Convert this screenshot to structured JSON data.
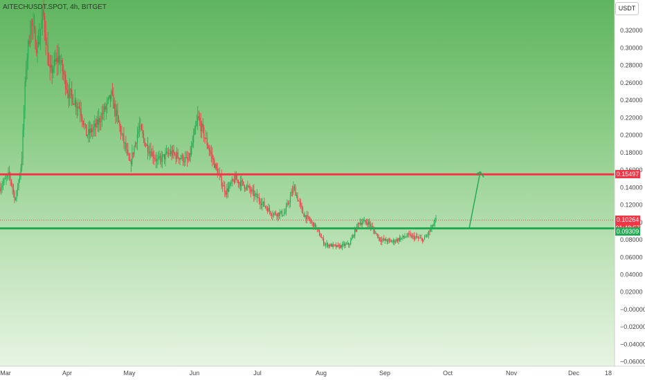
{
  "header": {
    "title": "AITECHUSDT.SPOT, 4h, BITGET",
    "currency_button": "USDT"
  },
  "chart_data": {
    "type": "candlestick",
    "symbol": "AITECHUSDT.SPOT",
    "interval": "4h",
    "exchange": "BITGET",
    "y_tick_labels": [
      "0.32000",
      "0.30000",
      "0.28000",
      "0.26000",
      "0.24000",
      "0.22000",
      "0.20000",
      "0.18000",
      "0.16000",
      "0.14000",
      "0.12000",
      "0.10000",
      "0.08000",
      "0.06000",
      "0.04000",
      "0.02000",
      "−0.00000",
      "−0.02000",
      "−0.04000",
      "−0.06000"
    ],
    "y_tick_values": [
      0.32,
      0.3,
      0.28,
      0.26,
      0.24,
      0.22,
      0.2,
      0.18,
      0.16,
      0.14,
      0.12,
      0.1,
      0.08,
      0.06,
      0.04,
      0.02,
      0.0,
      -0.02,
      -0.04,
      -0.06
    ],
    "ylim": [
      -0.065,
      0.355
    ],
    "x_tick_labels": [
      "Mar",
      "Apr",
      "May",
      "Jun",
      "Jul",
      "Aug",
      "Sep",
      "Oct",
      "Nov",
      "Dec",
      "18"
    ],
    "price_path": [
      {
        "t": 0.0,
        "p": 0.14
      },
      {
        "t": 1.5,
        "p": 0.155
      },
      {
        "t": 2.5,
        "p": 0.125
      },
      {
        "t": 3.5,
        "p": 0.17
      },
      {
        "t": 4.2,
        "p": 0.28
      },
      {
        "t": 5.0,
        "p": 0.33
      },
      {
        "t": 6.0,
        "p": 0.3
      },
      {
        "t": 7.0,
        "p": 0.34
      },
      {
        "t": 8.0,
        "p": 0.27
      },
      {
        "t": 9.5,
        "p": 0.29
      },
      {
        "t": 11.0,
        "p": 0.25
      },
      {
        "t": 13.0,
        "p": 0.23
      },
      {
        "t": 14.0,
        "p": 0.2
      },
      {
        "t": 15.5,
        "p": 0.21
      },
      {
        "t": 17.0,
        "p": 0.23
      },
      {
        "t": 18.0,
        "p": 0.245
      },
      {
        "t": 19.5,
        "p": 0.205
      },
      {
        "t": 20.5,
        "p": 0.18
      },
      {
        "t": 21.0,
        "p": 0.165
      },
      {
        "t": 22.5,
        "p": 0.21
      },
      {
        "t": 23.5,
        "p": 0.19
      },
      {
        "t": 25.5,
        "p": 0.17
      },
      {
        "t": 27.5,
        "p": 0.18
      },
      {
        "t": 29.0,
        "p": 0.175
      },
      {
        "t": 30.5,
        "p": 0.17
      },
      {
        "t": 32.0,
        "p": 0.22
      },
      {
        "t": 33.5,
        "p": 0.19
      },
      {
        "t": 35.0,
        "p": 0.16
      },
      {
        "t": 36.5,
        "p": 0.135
      },
      {
        "t": 38.0,
        "p": 0.15
      },
      {
        "t": 40.0,
        "p": 0.14
      },
      {
        "t": 42.0,
        "p": 0.125
      },
      {
        "t": 44.0,
        "p": 0.11
      },
      {
        "t": 46.0,
        "p": 0.11
      },
      {
        "t": 47.5,
        "p": 0.14
      },
      {
        "t": 49.0,
        "p": 0.11
      },
      {
        "t": 51.0,
        "p": 0.095
      },
      {
        "t": 52.5,
        "p": 0.075
      },
      {
        "t": 54.5,
        "p": 0.072
      },
      {
        "t": 56.5,
        "p": 0.075
      },
      {
        "t": 58.0,
        "p": 0.1
      },
      {
        "t": 59.5,
        "p": 0.1
      },
      {
        "t": 61.5,
        "p": 0.08
      },
      {
        "t": 63.5,
        "p": 0.078
      },
      {
        "t": 66.0,
        "p": 0.085
      },
      {
        "t": 68.5,
        "p": 0.08
      },
      {
        "t": 69.5,
        "p": 0.09
      },
      {
        "t": 70.5,
        "p": 0.103
      }
    ],
    "horizontal_lines": [
      {
        "price": 0.15497,
        "color": "#f23645"
      },
      {
        "price": 0.09309,
        "color": "#22ab52"
      }
    ],
    "arrow": {
      "from_price": 0.0931,
      "to_price": 0.158,
      "color": "#22ab52"
    },
    "labels": {
      "resistance": "0.15497",
      "current_price": "0.10264",
      "countdown": "01:48:57",
      "support": "0.09309"
    },
    "colors": {
      "up": "#22ab52",
      "down": "#f23645",
      "background_top": "#5fb55f",
      "background_bottom": "#e7f4e3"
    }
  }
}
